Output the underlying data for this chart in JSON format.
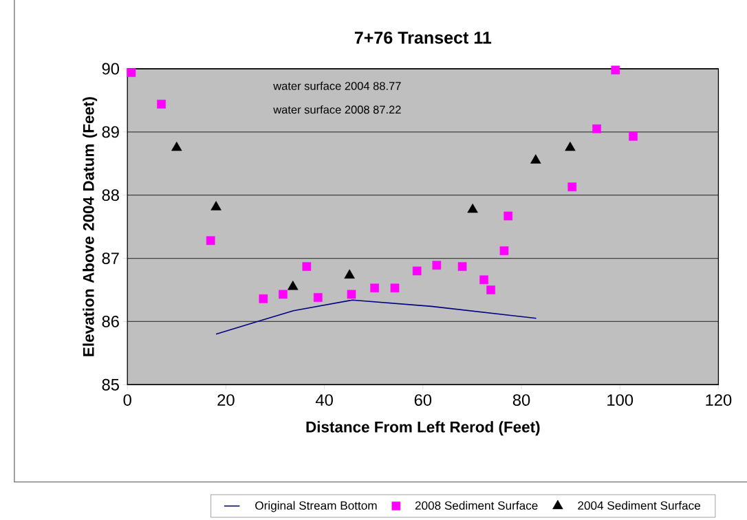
{
  "chart_data": {
    "type": "scatter",
    "title": "7+76 Transect 11",
    "xlabel": "Distance From Left Rerod (Feet)",
    "ylabel": "Elevation Above 2004 Datum (Feet)",
    "annotations": [
      "water surface 2004  88.77",
      "water surface 2008  87.22"
    ],
    "xlim": [
      0,
      120
    ],
    "xticks": [
      0,
      20,
      40,
      60,
      80,
      100,
      120
    ],
    "ylim": [
      85,
      90
    ],
    "yticks": [
      85,
      86,
      87,
      88,
      89,
      90
    ],
    "grid": "y",
    "legend": "bottom",
    "series": [
      {
        "name": "Original Stream Bottom",
        "type": "line",
        "color": "#000080",
        "marker": "none",
        "x": [
          18.0,
          27.3,
          33.7,
          45.7,
          61.7,
          83.0
        ],
        "values": [
          85.8,
          86.02,
          86.17,
          86.34,
          86.24,
          86.05
        ]
      },
      {
        "name": "2008 Sediment Surface",
        "color": "#ff00ff",
        "marker": "square",
        "x": [
          0.8,
          6.9,
          16.9,
          27.6,
          31.6,
          36.4,
          38.7,
          45.5,
          50.2,
          54.3,
          58.8,
          62.8,
          68.0,
          72.4,
          73.8,
          76.5,
          77.3,
          90.3,
          95.3,
          99.1,
          102.7
        ],
        "values": [
          89.94,
          89.44,
          87.28,
          86.36,
          86.43,
          86.87,
          86.38,
          86.43,
          86.53,
          86.53,
          86.8,
          86.89,
          86.87,
          86.66,
          86.5,
          87.12,
          87.67,
          88.13,
          89.05,
          89.98,
          88.93
        ]
      },
      {
        "name": "2004 Sediment Surface",
        "color": "#000000",
        "marker": "triangle",
        "x": [
          10.0,
          18.0,
          33.6,
          45.1,
          70.1,
          82.9,
          89.9
        ],
        "values": [
          88.75,
          87.81,
          86.55,
          86.73,
          87.77,
          88.55,
          88.75
        ]
      }
    ]
  }
}
